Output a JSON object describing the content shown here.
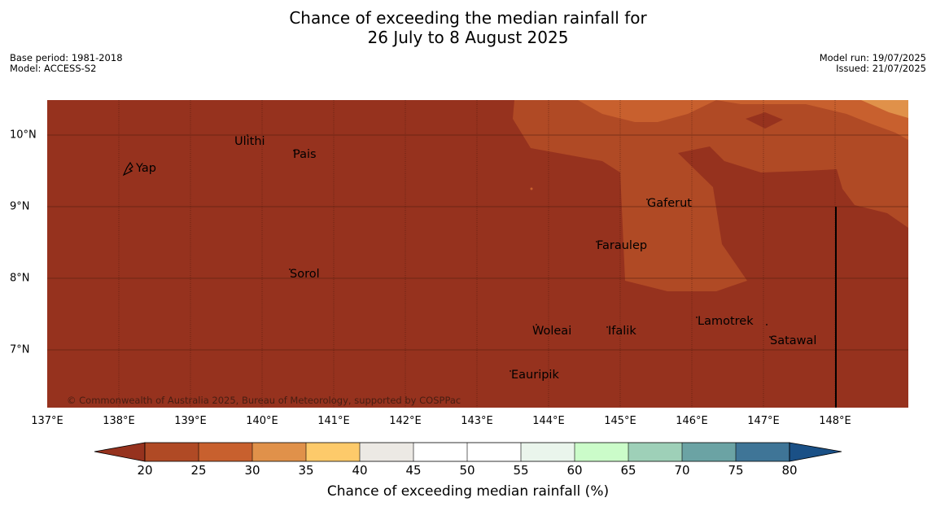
{
  "title": {
    "line1": "Chance of exceeding the median rainfall for",
    "line2": "26 July to 8 August 2025"
  },
  "meta_left": {
    "base_period": "Base period: 1981-2018",
    "model": "Model: ACCESS-S2"
  },
  "meta_right": {
    "model_run": "Model run: 19/07/2025",
    "issued": "Issued: 21/07/2025"
  },
  "map": {
    "lon_range": [
      137,
      149
    ],
    "lat_range": [
      6.2,
      10.5
    ],
    "x_ticks": [
      "137°E",
      "138°E",
      "139°E",
      "140°E",
      "141°E",
      "142°E",
      "143°E",
      "144°E",
      "145°E",
      "146°E",
      "147°E",
      "148°E"
    ],
    "y_ticks": [
      "10°N",
      "9°N",
      "8°N",
      "7°N"
    ],
    "places": [
      {
        "name": "Ulithi",
        "lon": 139.8,
        "lat": 9.9
      },
      {
        "name": "Pais",
        "lon": 140.45,
        "lat": 9.75
      },
      {
        "name": "Yap",
        "lon": 138.15,
        "lat": 9.5
      },
      {
        "name": "Gaferut",
        "lon": 145.4,
        "lat": 9.05
      },
      {
        "name": "Faraulep",
        "lon": 144.6,
        "lat": 8.45
      },
      {
        "name": "Sorol",
        "lon": 140.4,
        "lat": 8.05
      },
      {
        "name": "Lamotrek",
        "lon": 146.05,
        "lat": 7.4
      },
      {
        "name": "Woleai",
        "lon": 143.75,
        "lat": 7.3
      },
      {
        "name": "Ifalik",
        "lon": 144.8,
        "lat": 7.3
      },
      {
        "name": "Satawal",
        "lon": 147.1,
        "lat": 7.15
      },
      {
        "name": "Eauripik",
        "lon": 143.5,
        "lat": 6.7
      }
    ],
    "copyright": "© Commonwealth of Australia 2025, Bureau of Meteorology, supported by COSPPac",
    "colors": {
      "below_20": "#96321e",
      "20_25": "#b04a25",
      "25_30": "#c8602e",
      "30_35": "#e0914a"
    }
  },
  "colorbar": {
    "labels": [
      "20",
      "25",
      "30",
      "35",
      "40",
      "45",
      "50",
      "55",
      "60",
      "65",
      "70",
      "75",
      "80"
    ],
    "colors": [
      "#b04a25",
      "#c8602e",
      "#e0914a",
      "#fdca6a",
      "#ece9e4",
      "#ffffff",
      "#ffffff",
      "#eaf5ec",
      "#cbfcc9",
      "#9ed0b8",
      "#6ba3a4",
      "#3f7597"
    ],
    "under_color": "#96321e",
    "over_color": "#1a5086",
    "title": "Chance of exceeding median rainfall (%)"
  }
}
